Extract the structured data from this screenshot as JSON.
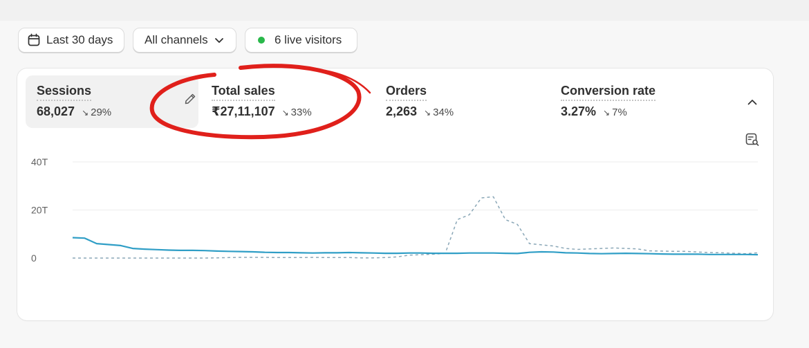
{
  "filters": {
    "date_label": "Last 30 days",
    "channels_label": "All channels",
    "live_label": "6 live visitors",
    "live_color": "#29b84a"
  },
  "metrics": [
    {
      "name": "Sessions",
      "value": "68,027",
      "change": "29%",
      "trend": "down",
      "active": true
    },
    {
      "name": "Total sales",
      "value": "₹27,11,107",
      "change": "33%",
      "trend": "down",
      "active": false
    },
    {
      "name": "Orders",
      "value": "2,263",
      "change": "34%",
      "trend": "down",
      "active": false
    },
    {
      "name": "Conversion rate",
      "value": "3.27%",
      "change": "7%",
      "trend": "down",
      "active": false
    }
  ],
  "icons": {
    "trend": "↘",
    "calendar": "calendar-icon",
    "chevron": "chevron-down-icon",
    "collapse": "chevron-up-icon",
    "edit": "pencil-icon",
    "explore": "magnify-report-icon"
  },
  "annotation_color": "#e0201b",
  "chart_data": {
    "type": "line",
    "ylim": [
      0,
      40
    ],
    "y_ticks": [
      "0",
      "20T",
      "40T"
    ],
    "y_tick_values": [
      0,
      20,
      40
    ],
    "grid": true,
    "colors": {
      "current": "#2f9ec6",
      "previous": "#8aa7b7"
    },
    "series": [
      {
        "style": "solid",
        "values": [
          8.5,
          8.3,
          6.0,
          5.6,
          5.2,
          4.0,
          3.7,
          3.5,
          3.3,
          3.2,
          3.2,
          3.1,
          2.9,
          2.8,
          2.7,
          2.6,
          2.4,
          2.3,
          2.3,
          2.2,
          2.1,
          2.2,
          2.2,
          2.3,
          2.2,
          2.1,
          2.0,
          2.0,
          2.1,
          2.1,
          2.0,
          2.0,
          2.0,
          2.1,
          2.1,
          2.1,
          2.0,
          1.9,
          2.4,
          2.6,
          2.5,
          2.2,
          2.1,
          1.9,
          1.8,
          1.9,
          2.0,
          1.9,
          1.8,
          1.7,
          1.6,
          1.6,
          1.6,
          1.5,
          1.5,
          1.5,
          1.5,
          1.4
        ]
      },
      {
        "style": "dashed",
        "values": [
          0,
          0,
          0,
          0,
          0,
          0,
          0,
          0,
          0,
          0,
          0,
          0,
          0.1,
          0.2,
          0.3,
          0.3,
          0.3,
          0.2,
          0.2,
          0.2,
          0.3,
          0.2,
          0.2,
          0.2,
          0.1,
          0.1,
          0.2,
          0.5,
          1.2,
          1.4,
          1.6,
          2.0,
          16.0,
          18.0,
          25.0,
          25.5,
          16.0,
          14.0,
          6.0,
          5.5,
          5.0,
          4.0,
          3.6,
          3.8,
          4.0,
          4.2,
          4.0,
          3.8,
          3.0,
          2.9,
          2.8,
          2.8,
          2.5,
          2.3,
          2.2,
          2.0,
          1.8,
          2.2
        ]
      }
    ]
  }
}
